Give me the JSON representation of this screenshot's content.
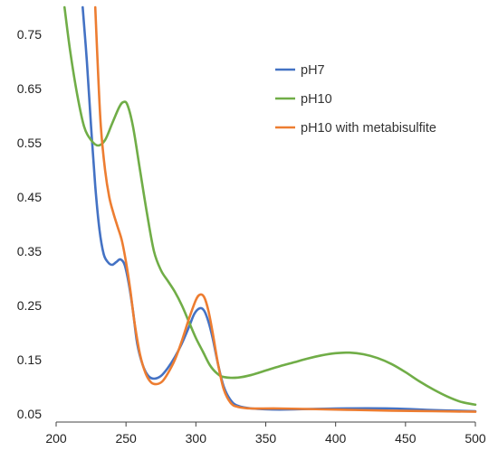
{
  "chart_data": {
    "type": "line",
    "title": "",
    "xlabel": "",
    "ylabel": "",
    "xlim": [
      200,
      500
    ],
    "ylim": [
      0.05,
      0.8
    ],
    "xticks": [
      "200",
      "250",
      "300",
      "350",
      "400",
      "450",
      "500"
    ],
    "yticks": [
      "0.05",
      "0.15",
      "0.25",
      "0.35",
      "0.45",
      "0.55",
      "0.65",
      "0.75"
    ],
    "grid": false,
    "legend_position": "top-right",
    "series": [
      {
        "name": "pH7",
        "color": "#4472C4",
        "points": [
          [
            219,
            0.8
          ],
          [
            222,
            0.7
          ],
          [
            225,
            0.58
          ],
          [
            228,
            0.47
          ],
          [
            231,
            0.39
          ],
          [
            234,
            0.345
          ],
          [
            237,
            0.33
          ],
          [
            240,
            0.325
          ],
          [
            243,
            0.33
          ],
          [
            246,
            0.335
          ],
          [
            249,
            0.325
          ],
          [
            252,
            0.29
          ],
          [
            255,
            0.24
          ],
          [
            258,
            0.18
          ],
          [
            262,
            0.14
          ],
          [
            266,
            0.12
          ],
          [
            270,
            0.115
          ],
          [
            275,
            0.12
          ],
          [
            280,
            0.135
          ],
          [
            285,
            0.155
          ],
          [
            290,
            0.18
          ],
          [
            295,
            0.21
          ],
          [
            299,
            0.235
          ],
          [
            303,
            0.245
          ],
          [
            306,
            0.24
          ],
          [
            309,
            0.22
          ],
          [
            312,
            0.19
          ],
          [
            316,
            0.14
          ],
          [
            320,
            0.1
          ],
          [
            325,
            0.075
          ],
          [
            330,
            0.065
          ],
          [
            340,
            0.06
          ],
          [
            360,
            0.058
          ],
          [
            400,
            0.06
          ],
          [
            440,
            0.06
          ],
          [
            470,
            0.057
          ],
          [
            500,
            0.055
          ]
        ]
      },
      {
        "name": "pH10",
        "color": "#70AD47",
        "points": [
          [
            206,
            0.8
          ],
          [
            210,
            0.72
          ],
          [
            215,
            0.64
          ],
          [
            220,
            0.58
          ],
          [
            225,
            0.555
          ],
          [
            230,
            0.545
          ],
          [
            235,
            0.555
          ],
          [
            240,
            0.585
          ],
          [
            245,
            0.615
          ],
          [
            248,
            0.625
          ],
          [
            251,
            0.62
          ],
          [
            255,
            0.58
          ],
          [
            260,
            0.5
          ],
          [
            265,
            0.42
          ],
          [
            270,
            0.35
          ],
          [
            275,
            0.315
          ],
          [
            280,
            0.295
          ],
          [
            285,
            0.275
          ],
          [
            290,
            0.25
          ],
          [
            295,
            0.22
          ],
          [
            300,
            0.19
          ],
          [
            305,
            0.165
          ],
          [
            310,
            0.14
          ],
          [
            315,
            0.125
          ],
          [
            320,
            0.118
          ],
          [
            330,
            0.117
          ],
          [
            340,
            0.122
          ],
          [
            350,
            0.13
          ],
          [
            360,
            0.138
          ],
          [
            370,
            0.145
          ],
          [
            380,
            0.152
          ],
          [
            390,
            0.158
          ],
          [
            400,
            0.162
          ],
          [
            410,
            0.163
          ],
          [
            420,
            0.16
          ],
          [
            430,
            0.153
          ],
          [
            440,
            0.142
          ],
          [
            450,
            0.127
          ],
          [
            460,
            0.11
          ],
          [
            470,
            0.095
          ],
          [
            480,
            0.082
          ],
          [
            490,
            0.072
          ],
          [
            500,
            0.067
          ]
        ]
      },
      {
        "name": "pH10 with metabisulfite",
        "color": "#ED7D31",
        "points": [
          [
            228,
            0.8
          ],
          [
            230,
            0.68
          ],
          [
            232,
            0.58
          ],
          [
            235,
            0.5
          ],
          [
            238,
            0.45
          ],
          [
            241,
            0.42
          ],
          [
            244,
            0.395
          ],
          [
            247,
            0.37
          ],
          [
            250,
            0.33
          ],
          [
            253,
            0.28
          ],
          [
            256,
            0.22
          ],
          [
            260,
            0.16
          ],
          [
            264,
            0.125
          ],
          [
            268,
            0.108
          ],
          [
            272,
            0.105
          ],
          [
            276,
            0.11
          ],
          [
            280,
            0.125
          ],
          [
            285,
            0.15
          ],
          [
            290,
            0.185
          ],
          [
            295,
            0.225
          ],
          [
            300,
            0.26
          ],
          [
            303,
            0.27
          ],
          [
            306,
            0.265
          ],
          [
            309,
            0.24
          ],
          [
            312,
            0.2
          ],
          [
            316,
            0.14
          ],
          [
            320,
            0.095
          ],
          [
            325,
            0.07
          ],
          [
            330,
            0.063
          ],
          [
            340,
            0.06
          ],
          [
            360,
            0.06
          ],
          [
            400,
            0.058
          ],
          [
            440,
            0.056
          ],
          [
            470,
            0.055
          ],
          [
            500,
            0.054
          ]
        ]
      }
    ]
  }
}
